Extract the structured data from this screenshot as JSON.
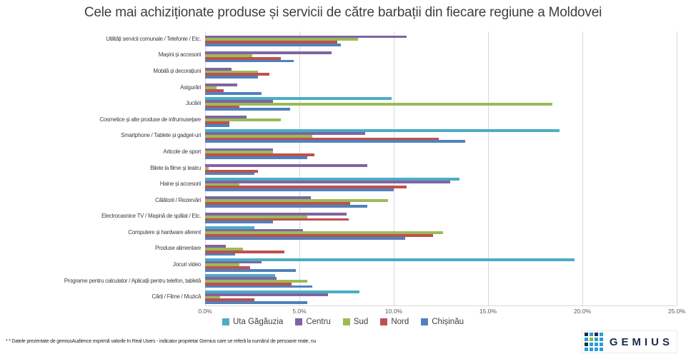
{
  "title": "Cele mai achiziționate produse și servicii de către barbații din fiecare regiune a Moldovei",
  "chart_data": {
    "type": "bar",
    "orientation": "horizontal",
    "title": "Cele mai achiziționate produse și servicii de către barbații din fiecare regiune a Moldovei",
    "categories": [
      "Utilități servicii comunale / Telefonie / Etc.",
      "Mașini și accesorii",
      "Mobilă și decorațiuni",
      "Asigurări",
      "Jucării",
      "Cosmetice și alte produse de infrumusețare",
      "Smartphone / Tablete și gadget-uri",
      "Articole de sport",
      "Bilete la filme și teatru",
      "Haine și accesorii",
      "Călătorii / Rezervări",
      "Electrocasnice TV / Mașină de spălat / Etc.",
      "Computere și hardware aferent",
      "Produse alimentare",
      "Jocuri video",
      "Programe pentru calculator / Aplicații pentru telefon, tabletă",
      "Cărți / Filme / Muzică"
    ],
    "series": [
      {
        "name": "Uta Găgăuzia",
        "color": "#4BACC6",
        "values": [
          0,
          0,
          0,
          0,
          9.9,
          0,
          18.8,
          0,
          0,
          13.5,
          0,
          0,
          2.6,
          0,
          19.6,
          3.7,
          8.2
        ]
      },
      {
        "name": "Centru",
        "color": "#8064A2",
        "values": [
          10.7,
          6.7,
          1.4,
          1.7,
          3.6,
          2.2,
          8.5,
          3.6,
          8.6,
          13.0,
          5.6,
          7.5,
          5.2,
          1.1,
          3.0,
          3.8,
          6.5
        ]
      },
      {
        "name": "Sud",
        "color": "#9BBB59",
        "values": [
          8.1,
          2.5,
          2.8,
          0.6,
          18.4,
          4.0,
          5.7,
          3.6,
          0.2,
          1.8,
          9.7,
          5.4,
          12.6,
          2.0,
          1.8,
          5.4,
          0.8
        ]
      },
      {
        "name": "Nord",
        "color": "#C0504D",
        "values": [
          7.0,
          4.0,
          3.4,
          1.0,
          1.8,
          1.3,
          12.4,
          5.8,
          2.8,
          10.7,
          7.7,
          7.6,
          12.1,
          4.2,
          2.4,
          4.6,
          2.6
        ]
      },
      {
        "name": "Chișinău",
        "color": "#4F81BD",
        "values": [
          7.2,
          4.7,
          2.8,
          3.0,
          4.5,
          1.3,
          13.8,
          5.4,
          2.6,
          10.0,
          8.6,
          3.6,
          10.6,
          1.6,
          4.8,
          5.7,
          5.4
        ]
      }
    ],
    "xlim": [
      0,
      25
    ],
    "x_tick_labels": [
      "0.0%",
      "5.0%",
      "10.0%",
      "15.0%",
      "20.0%",
      "25.0%"
    ],
    "grid": true,
    "legend_position": "bottom"
  },
  "footer": {
    "note": "* * Datele prezentate de gemiusAudience exprimă valorile In Real Users - indicator proprietar Gemius care se referă la numărul de persoane reale, nu"
  },
  "logo": {
    "text": "GEMIUS",
    "navy": "#1B2B4A",
    "blue": "#2B9CD8",
    "green": "#7FB93C",
    "dots": [
      "#1B2B4A",
      "#2B9CD8",
      "#1B2B4A",
      "#2B9CD8",
      "#2B9CD8",
      "#7FB93C",
      "#2B9CD8",
      "#2B9CD8",
      "#1B2B4A",
      "#2B9CD8",
      "#2B9CD8",
      "#2B9CD8",
      "#2B9CD8",
      "#2B9CD8",
      "#2B9CD8",
      "#2B9CD8"
    ]
  }
}
